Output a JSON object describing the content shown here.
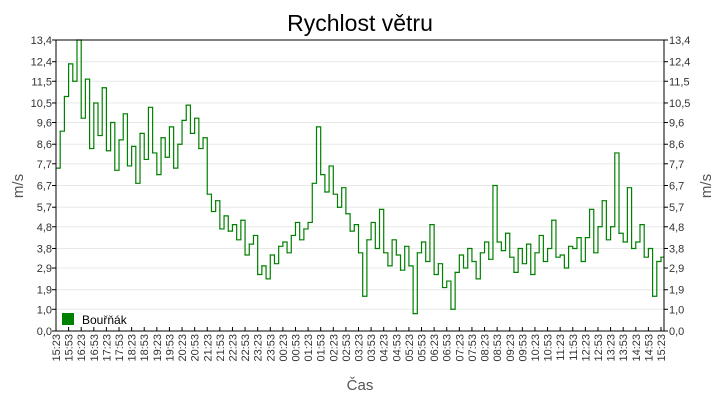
{
  "chart_data": {
    "type": "line",
    "title": "Rychlost větru",
    "xlabel": "Čas",
    "ylabel": "m/s",
    "ylim": [
      0,
      13.4
    ],
    "grid": true,
    "legend_position": "bottom-left",
    "y_ticks": [
      "0,0",
      "1,0",
      "1,9",
      "2,9",
      "3,8",
      "4,8",
      "5,7",
      "6,7",
      "7,7",
      "8,6",
      "9,6",
      "10,5",
      "11,5",
      "12,4",
      "13,4"
    ],
    "x_ticks": [
      "15:23",
      "15:53",
      "16:23",
      "16:53",
      "17:23",
      "17:53",
      "18:23",
      "18:53",
      "19:23",
      "19:53",
      "20:23",
      "20:53",
      "21:23",
      "21:53",
      "22:23",
      "22:53",
      "23:23",
      "23:53",
      "00:23",
      "00:53",
      "01:23",
      "01:53",
      "02:23",
      "02:53",
      "03:23",
      "03:53",
      "04:23",
      "04:53",
      "05:23",
      "05:53",
      "06:23",
      "06:53",
      "07:23",
      "07:53",
      "08:23",
      "08:53",
      "09:23",
      "09:53",
      "10:23",
      "10:53",
      "11:23",
      "11:53",
      "12:23",
      "12:53",
      "13:23",
      "13:53",
      "14:23",
      "14:53",
      "15:23"
    ],
    "x_start": "15:23",
    "x_step_minutes": 10,
    "series": [
      {
        "name": "Bouřňák",
        "color": "#008000",
        "values": [
          7.5,
          9.2,
          10.8,
          12.3,
          11.5,
          13.4,
          9.8,
          11.6,
          8.4,
          10.5,
          9.0,
          11.2,
          8.3,
          9.6,
          7.4,
          8.8,
          10.0,
          7.6,
          8.5,
          6.8,
          9.1,
          7.9,
          10.3,
          8.2,
          7.2,
          8.9,
          8.0,
          9.4,
          7.5,
          8.6,
          9.7,
          10.4,
          9.1,
          9.8,
          8.4,
          8.9,
          6.3,
          5.5,
          6.0,
          4.7,
          5.3,
          4.6,
          4.9,
          4.2,
          5.1,
          3.5,
          4.0,
          4.4,
          2.6,
          3.0,
          2.4,
          3.5,
          3.1,
          3.9,
          4.1,
          3.6,
          4.4,
          5.0,
          4.2,
          4.7,
          5.0,
          6.8,
          9.4,
          7.2,
          6.4,
          7.6,
          6.3,
          5.7,
          6.6,
          5.4,
          4.6,
          4.9,
          3.6,
          1.6,
          4.2,
          5.0,
          3.8,
          5.6,
          3.6,
          3.0,
          4.2,
          3.5,
          2.8,
          3.9,
          3.0,
          0.8,
          3.6,
          4.1,
          3.2,
          4.9,
          2.6,
          3.1,
          2.0,
          2.3,
          1.0,
          2.7,
          3.5,
          2.9,
          3.8,
          3.2,
          2.4,
          3.6,
          4.1,
          3.3,
          6.7,
          4.1,
          3.7,
          4.5,
          3.4,
          2.7,
          3.8,
          3.1,
          4.0,
          2.6,
          3.6,
          4.4,
          3.2,
          3.8,
          5.1,
          3.4,
          3.5,
          2.9,
          3.9,
          3.8,
          4.3,
          3.2,
          4.3,
          5.6,
          3.6,
          4.8,
          6.0,
          4.2,
          4.8,
          8.2,
          4.5,
          4.1,
          6.6,
          3.8,
          4.1,
          4.9,
          3.4,
          3.8,
          1.6,
          3.2,
          3.4
        ]
      }
    ]
  }
}
